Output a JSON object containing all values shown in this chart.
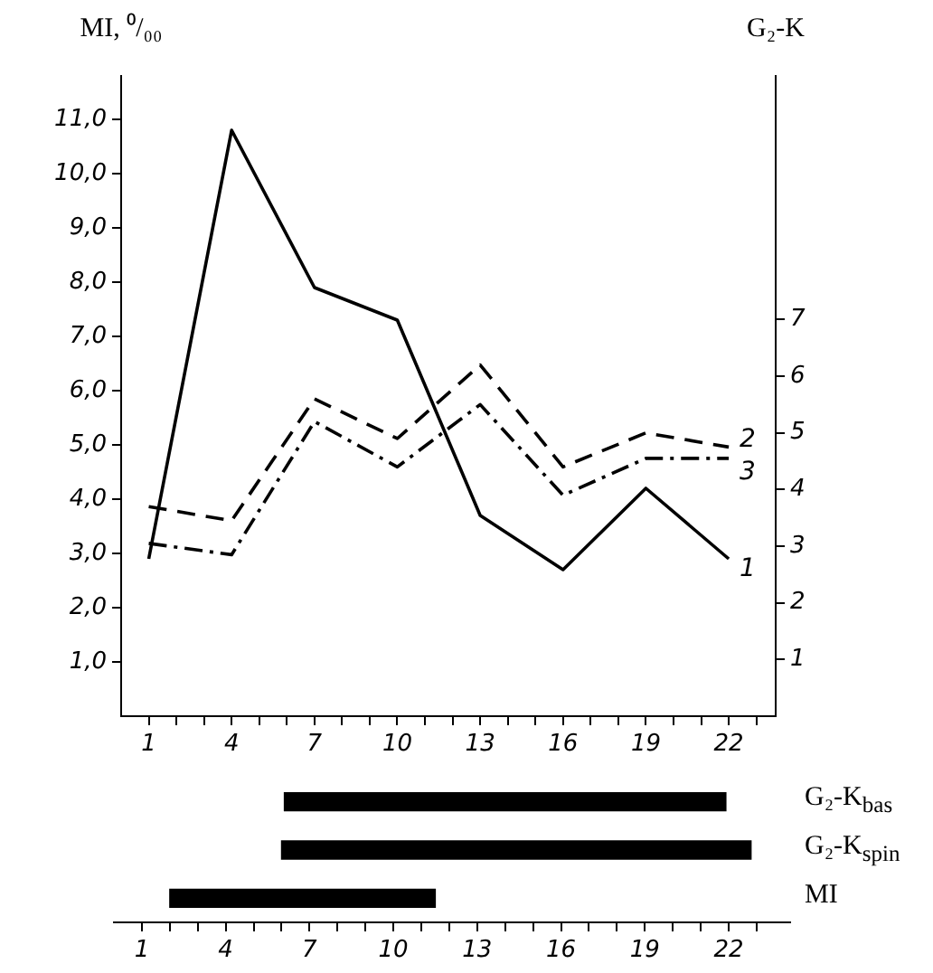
{
  "chart_data": [
    {
      "type": "line",
      "ylabel": "MI, ⁰/₀₀",
      "y2label": "G₂-K",
      "x": [
        1,
        4,
        7,
        10,
        13,
        16,
        19,
        22
      ],
      "series": [
        {
          "name": "1",
          "color": "#000000",
          "line_style": "solid",
          "values": [
            2.9,
            10.8,
            7.9,
            7.3,
            3.7,
            2.7,
            4.2,
            2.9
          ]
        },
        {
          "name": "2",
          "color": "#000000",
          "line_style": "dashed",
          "axis": "y2",
          "values": [
            3.7,
            3.45,
            5.6,
            4.9,
            6.2,
            4.4,
            5.0,
            4.75
          ]
        },
        {
          "name": "3",
          "color": "#000000",
          "line_style": "dashdot",
          "axis": "y2",
          "values": [
            3.05,
            2.85,
            5.2,
            4.4,
            5.5,
            3.9,
            4.55,
            4.55
          ]
        }
      ],
      "xlim": [
        0,
        23.7
      ],
      "xticks": [
        1,
        {
          "value": 2,
          "label": null
        },
        {
          "value": 3,
          "label": null
        },
        4,
        {
          "value": 5,
          "label": null
        },
        {
          "value": 6,
          "label": null
        },
        7,
        {
          "value": 8,
          "label": null
        },
        {
          "value": 9,
          "label": null
        },
        10,
        {
          "value": 11,
          "label": null
        },
        {
          "value": 12,
          "label": null
        },
        13,
        {
          "value": 14,
          "label": null
        },
        {
          "value": 15,
          "label": null
        },
        16,
        {
          "value": 17,
          "label": null
        },
        {
          "value": 18,
          "label": null
        },
        19,
        {
          "value": 20,
          "label": null
        },
        {
          "value": 21,
          "label": null
        },
        22,
        {
          "value": 23,
          "label": null
        }
      ],
      "ylim": [
        0,
        11.8
      ],
      "yticks": [
        {
          "value": 1,
          "label": "1,0"
        },
        {
          "value": 2,
          "label": "2,0"
        },
        {
          "value": 3,
          "label": "3,0"
        },
        {
          "value": 4,
          "label": "4,0"
        },
        {
          "value": 5,
          "label": "5,0"
        },
        {
          "value": 6,
          "label": "6,0"
        },
        {
          "value": 7,
          "label": "7,0"
        },
        {
          "value": 8,
          "label": "8,0"
        },
        {
          "value": 9,
          "label": "9,0"
        },
        {
          "value": 10,
          "label": "10,0"
        },
        {
          "value": 11,
          "label": "11,0"
        }
      ],
      "y2lim": [
        0,
        11.3
      ],
      "y2ticks": [
        1,
        2,
        3,
        4,
        5,
        6,
        7
      ],
      "grid": false,
      "legend": false,
      "marker": "none"
    },
    {
      "type": "bar",
      "orientation": "horizontal",
      "categories": [
        "G₂-K$_{bas}$",
        "G₂-K$_{spin}$",
        "MI"
      ],
      "base": [
        6.1,
        6.0,
        2.0
      ],
      "values": [
        15.8,
        16.8,
        9.5
      ],
      "color": "#000000",
      "xlim": [
        0,
        24.2
      ],
      "xticks": [
        1,
        {
          "value": 2,
          "label": null
        },
        {
          "value": 3,
          "label": null
        },
        4,
        {
          "value": 5,
          "label": null
        },
        {
          "value": 6,
          "label": null
        },
        7,
        {
          "value": 8,
          "label": null
        },
        {
          "value": 9,
          "label": null
        },
        10,
        {
          "value": 11,
          "label": null
        },
        {
          "value": 12,
          "label": null
        },
        13,
        {
          "value": 14,
          "label": null
        },
        {
          "value": 15,
          "label": null
        },
        16,
        {
          "value": 17,
          "label": null
        },
        {
          "value": 18,
          "label": null
        },
        19,
        {
          "value": 20,
          "label": null
        },
        {
          "value": 21,
          "label": null
        },
        22,
        {
          "value": 23,
          "label": null
        }
      ],
      "grid": false,
      "legend": false
    }
  ]
}
